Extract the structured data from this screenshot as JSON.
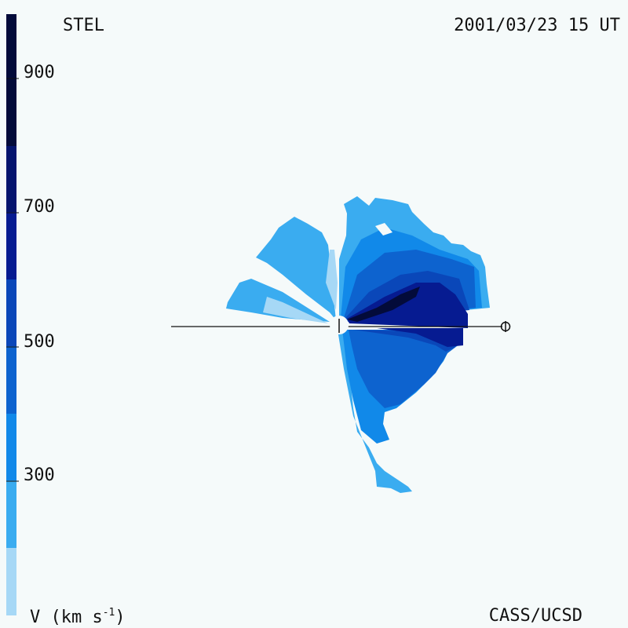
{
  "header": {
    "station": "STEL",
    "datetime": "2001/03/23 15 UT"
  },
  "footer": {
    "credit": "CASS/UCSD"
  },
  "colorbar": {
    "unit_label": "V (km s",
    "unit_exponent": "-1",
    "unit_close": ")",
    "tick_labels": [
      "900",
      "700",
      "500",
      "300"
    ],
    "colors": [
      "#a6d8f6",
      "#3aacf0",
      "#1189e9",
      "#0d63cf",
      "#0a47b9",
      "#061b91",
      "#04146e",
      "#030b3a"
    ]
  },
  "plot": {
    "sun_marker": "|",
    "earth_symbol": "earth-icon"
  }
}
